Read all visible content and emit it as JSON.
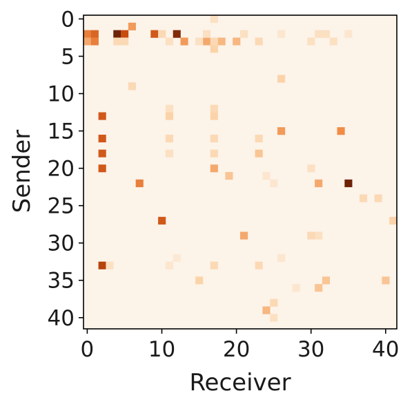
{
  "chart_data": {
    "type": "heatmap",
    "title": "",
    "xlabel": "Receiver",
    "ylabel": "Sender",
    "x_range": [
      0,
      41
    ],
    "y_range": [
      0,
      41
    ],
    "x_ticks": [
      0,
      10,
      20,
      30,
      40
    ],
    "y_ticks": [
      0,
      5,
      10,
      15,
      20,
      25,
      30,
      35,
      40
    ],
    "y_axis_inverted": true,
    "colorscale": "Oranges",
    "color_min": "#fcf3e9",
    "color_max": "#6e2309",
    "value_range": [
      0,
      1
    ],
    "grid": false,
    "cells": [
      [
        0,
        2,
        0.55
      ],
      [
        1,
        2,
        0.65
      ],
      [
        4,
        2,
        1.0
      ],
      [
        5,
        2,
        0.75
      ],
      [
        9,
        2,
        0.7
      ],
      [
        12,
        2,
        0.95
      ],
      [
        0,
        3,
        0.4
      ],
      [
        1,
        3,
        0.55
      ],
      [
        6,
        1,
        0.45
      ],
      [
        13,
        3,
        0.45
      ],
      [
        16,
        3,
        0.4
      ],
      [
        18,
        3,
        0.35
      ],
      [
        20,
        3,
        0.35
      ],
      [
        2,
        13,
        0.7
      ],
      [
        2,
        16,
        0.7
      ],
      [
        2,
        18,
        0.7
      ],
      [
        2,
        20,
        0.7
      ],
      [
        2,
        33,
        0.8
      ],
      [
        7,
        22,
        0.55
      ],
      [
        10,
        27,
        0.7
      ],
      [
        35,
        22,
        1.0
      ],
      [
        26,
        15,
        0.45
      ],
      [
        34,
        15,
        0.5
      ],
      [
        21,
        29,
        0.4
      ],
      [
        31,
        22,
        0.4
      ],
      [
        24,
        39,
        0.35
      ],
      [
        17,
        20,
        0.4
      ],
      [
        17,
        4,
        0.25
      ],
      [
        3,
        33,
        0.15
      ],
      [
        16,
        2,
        0.15
      ],
      [
        4,
        3,
        0.2
      ],
      [
        5,
        3,
        0.2
      ],
      [
        10,
        2,
        0.2
      ],
      [
        11,
        3,
        0.15
      ],
      [
        15,
        3,
        0.15
      ],
      [
        17,
        3,
        0.2
      ],
      [
        23,
        3,
        0.2
      ],
      [
        30,
        3,
        0.15
      ],
      [
        33,
        3,
        0.15
      ],
      [
        21,
        2,
        0.15
      ],
      [
        17,
        0,
        0.15
      ],
      [
        26,
        2,
        0.1
      ],
      [
        31,
        2,
        0.15
      ],
      [
        32,
        2,
        0.15
      ],
      [
        6,
        9,
        0.2
      ],
      [
        11,
        12,
        0.15
      ],
      [
        11,
        13,
        0.25
      ],
      [
        17,
        12,
        0.2
      ],
      [
        17,
        13,
        0.25
      ],
      [
        11,
        16,
        0.2
      ],
      [
        17,
        16,
        0.2
      ],
      [
        17,
        18,
        0.2
      ],
      [
        11,
        18,
        0.15
      ],
      [
        23,
        16,
        0.2
      ],
      [
        23,
        18,
        0.3
      ],
      [
        19,
        21,
        0.3
      ],
      [
        30,
        20,
        0.15
      ],
      [
        26,
        8,
        0.25
      ],
      [
        37,
        24,
        0.2
      ],
      [
        39,
        24,
        0.2
      ],
      [
        41,
        27,
        0.25
      ],
      [
        32,
        35,
        0.3
      ],
      [
        31,
        36,
        0.3
      ],
      [
        40,
        35,
        0.3
      ],
      [
        15,
        35,
        0.25
      ],
      [
        23,
        33,
        0.2
      ],
      [
        17,
        33,
        0.2
      ],
      [
        25,
        38,
        0.2
      ],
      [
        25,
        40,
        0.15
      ],
      [
        31,
        29,
        0.15
      ],
      [
        30,
        29,
        0.2
      ],
      [
        26,
        32,
        0.1
      ],
      [
        24,
        21,
        0.1
      ],
      [
        25,
        22,
        0.1
      ],
      [
        12,
        32,
        0.08
      ],
      [
        11,
        33,
        0.1
      ],
      [
        28,
        36,
        0.1
      ],
      [
        35,
        2,
        0.1
      ]
    ]
  }
}
